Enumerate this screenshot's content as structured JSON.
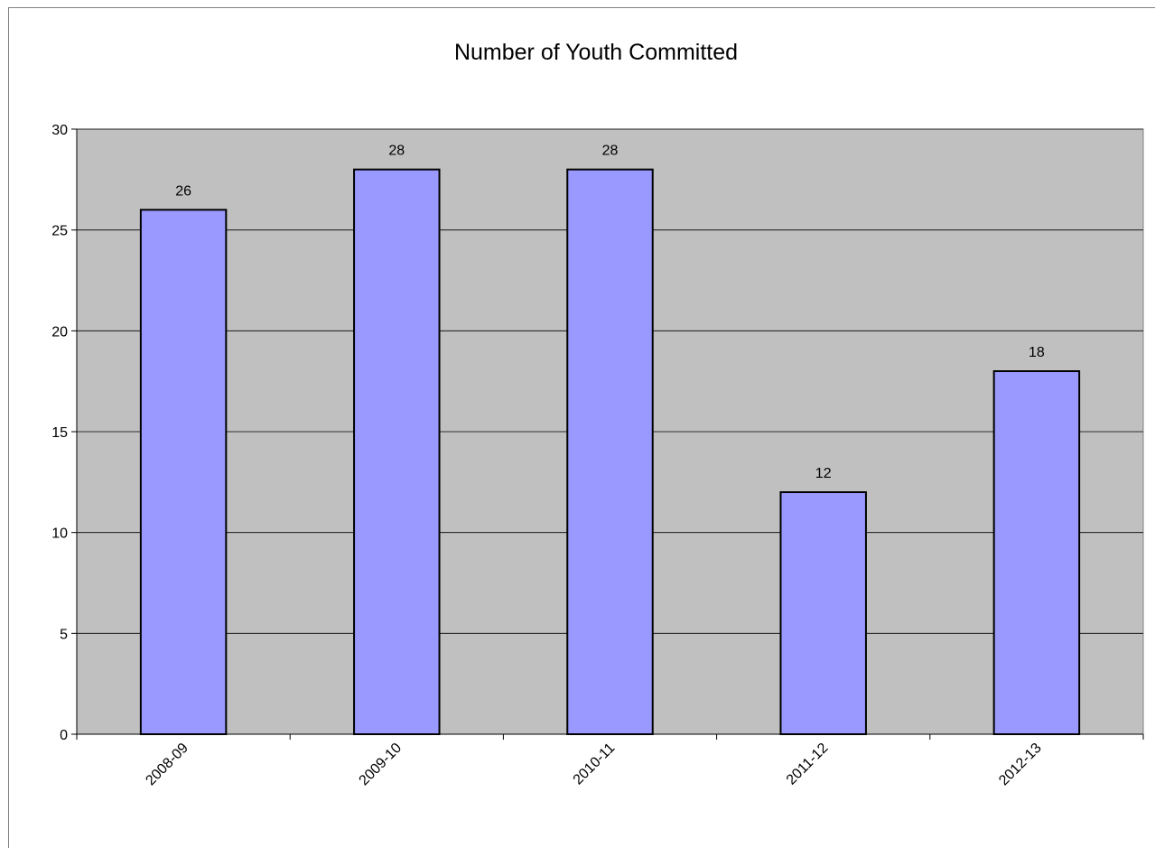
{
  "chart_data": {
    "type": "bar",
    "title": "Number of Youth Committed",
    "categories": [
      "2008-09",
      "2009-10",
      "2010-11",
      "2011-12",
      "2012-13"
    ],
    "values": [
      26,
      28,
      28,
      12,
      18
    ],
    "data_labels": [
      "26",
      "28",
      "28",
      "12",
      "18"
    ],
    "y_ticks": [
      "0",
      "5",
      "10",
      "15",
      "20",
      "25",
      "30"
    ],
    "ylim": [
      0,
      30
    ],
    "xlabel": "",
    "ylabel": "",
    "grid": true,
    "legend": "none",
    "colors": {
      "bar_fill": "#9999ff",
      "bar_stroke": "#000000",
      "plot_background": "#c0c0c0",
      "gridline": "#000000"
    }
  }
}
